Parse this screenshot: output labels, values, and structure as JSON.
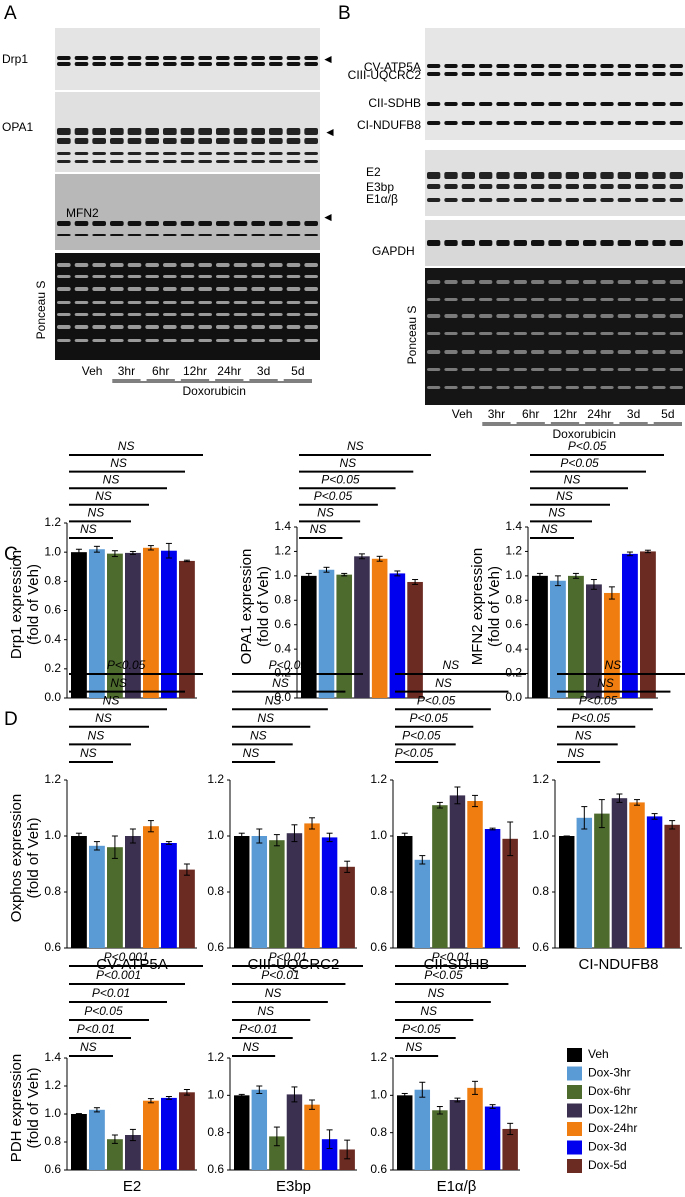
{
  "panel_labels": [
    "A",
    "B",
    "C",
    "D"
  ],
  "blot_a": {
    "labels": [
      "Drp1",
      "OPA1",
      "MFN2",
      "Ponceau S"
    ],
    "lanes": [
      "Veh",
      "3hr",
      "6hr",
      "12hr",
      "24hr",
      "3d",
      "5d"
    ],
    "treatment": "Doxorubicin"
  },
  "blot_b": {
    "labels": [
      "CV-ATP5A",
      "CIII-UQCRC2",
      "CII-SDHB",
      "CI-NDUFB8",
      "E2",
      "E3bp",
      "E1α/β",
      "GAPDH",
      "Ponceau S"
    ],
    "lanes": [
      "Veh",
      "3hr",
      "6hr",
      "12hr",
      "24hr",
      "3d",
      "5d"
    ],
    "treatment": "Doxorubicin"
  },
  "legend": {
    "names": [
      "Veh",
      "Dox-3hr",
      "Dox-6hr",
      "Dox-12hr",
      "Dox-24hr",
      "Dox-3d",
      "Dox-5d"
    ],
    "colors": [
      "#000000",
      "#5b9bd5",
      "#4e6b2e",
      "#3b3050",
      "#f07d10",
      "#0000ee",
      "#6b2a22"
    ]
  },
  "chart_data": [
    {
      "type": "bar",
      "ylabel": [
        "Drp1 expression",
        "(fold of Veh)"
      ],
      "values": [
        1.0,
        1.02,
        0.99,
        0.995,
        1.03,
        1.01,
        0.94
      ],
      "errors": [
        0.02,
        0.02,
        0.02,
        0.01,
        0.015,
        0.05,
        0.005
      ],
      "ylim": [
        0,
        1.2
      ],
      "yticks": [
        {
          "value": 0,
          "label": "0.0"
        },
        {
          "value": 0.2,
          "label": "0.2"
        },
        {
          "value": 0.4,
          "label": "0.4"
        },
        {
          "value": 0.6,
          "label": "0.6"
        },
        {
          "value": 0.8,
          "label": "0.8"
        },
        {
          "value": 1,
          "label": "1.0"
        },
        {
          "value": 1.2,
          "label": "1.2"
        }
      ],
      "brackets": [
        "NS",
        "NS",
        "NS",
        "NS",
        "NS",
        "NS"
      ]
    },
    {
      "type": "bar",
      "ylabel": [
        "OPA1 expression",
        "(fold of Veh)"
      ],
      "values": [
        1.0,
        1.05,
        1.01,
        1.16,
        1.14,
        1.02,
        0.95
      ],
      "errors": [
        0.02,
        0.02,
        0.01,
        0.02,
        0.02,
        0.02,
        0.02
      ],
      "ylim": [
        0,
        1.4
      ],
      "yticks": [
        {
          "value": 0,
          "label": "0.0"
        },
        {
          "value": 0.2,
          "label": "0.2"
        },
        {
          "value": 0.4,
          "label": "0.4"
        },
        {
          "value": 0.6,
          "label": "0.6"
        },
        {
          "value": 0.8,
          "label": "0.8"
        },
        {
          "value": 1,
          "label": "1.0"
        },
        {
          "value": 1.2,
          "label": "1.2"
        },
        {
          "value": 1.4,
          "label": "1.4"
        }
      ],
      "brackets": [
        "NS",
        "NS",
        "P<0.05",
        "P<0.05",
        "NS",
        "NS"
      ]
    },
    {
      "type": "bar",
      "ylabel": [
        "MFN2 expression",
        "(fold of Veh)"
      ],
      "values": [
        1.0,
        0.96,
        1.0,
        0.93,
        0.86,
        1.18,
        1.2
      ],
      "errors": [
        0.02,
        0.04,
        0.02,
        0.04,
        0.05,
        0.015,
        0.01
      ],
      "ylim": [
        0,
        1.4
      ],
      "yticks": [
        {
          "value": 0,
          "label": "0.0"
        },
        {
          "value": 0.2,
          "label": "0.2"
        },
        {
          "value": 0.4,
          "label": "0.4"
        },
        {
          "value": 0.6,
          "label": "0.6"
        },
        {
          "value": 0.8,
          "label": "0.8"
        },
        {
          "value": 1,
          "label": "1.0"
        },
        {
          "value": 1.2,
          "label": "1.2"
        },
        {
          "value": 1.4,
          "label": "1.4"
        }
      ],
      "brackets": [
        "NS",
        "NS",
        "NS",
        "NS",
        "P<0.05",
        "P<0.05"
      ]
    },
    {
      "type": "bar",
      "ylabel": [
        "Oxphos expression",
        "(fold of Veh)"
      ],
      "xlabel": "CV-ATP5A",
      "values": [
        1.0,
        0.965,
        0.96,
        1.0,
        1.035,
        0.975,
        0.88
      ],
      "errors": [
        0.01,
        0.015,
        0.04,
        0.025,
        0.02,
        0.005,
        0.02
      ],
      "ylim": [
        0.6,
        1.2
      ],
      "yticks": [
        {
          "value": 0.6,
          "label": "0.6"
        },
        {
          "value": 0.8,
          "label": "0.8"
        },
        {
          "value": 1,
          "label": "1.0"
        },
        {
          "value": 1.2,
          "label": "1.2"
        }
      ],
      "brackets": [
        "NS",
        "NS",
        "NS",
        "NS",
        "NS",
        "P<0.05"
      ]
    },
    {
      "type": "bar",
      "xlabel": "CIII-UQCRC2",
      "values": [
        1.0,
        1.0,
        0.985,
        1.01,
        1.045,
        0.995,
        0.89
      ],
      "errors": [
        0.01,
        0.025,
        0.02,
        0.03,
        0.02,
        0.015,
        0.02
      ],
      "ylim": [
        0.6,
        1.2
      ],
      "yticks": [
        {
          "value": 0.6,
          "label": "0.6"
        },
        {
          "value": 0.8,
          "label": "0.8"
        },
        {
          "value": 1,
          "label": "1.0"
        },
        {
          "value": 1.2,
          "label": "1.2"
        }
      ],
      "brackets": [
        "NS",
        "NS",
        "NS",
        "NS",
        "NS",
        "P<0.05"
      ]
    },
    {
      "type": "bar",
      "xlabel": "CII-SDHB",
      "values": [
        1.0,
        0.915,
        1.11,
        1.145,
        1.125,
        1.025,
        0.99
      ],
      "errors": [
        0.01,
        0.015,
        0.01,
        0.03,
        0.02,
        0.003,
        0.06
      ],
      "ylim": [
        0.6,
        1.2
      ],
      "yticks": [
        {
          "value": 0.6,
          "label": "0.6"
        },
        {
          "value": 0.8,
          "label": "0.8"
        },
        {
          "value": 1,
          "label": "1.0"
        },
        {
          "value": 1.2,
          "label": "1.2"
        }
      ],
      "brackets": [
        "P<0.05",
        "P<0.05",
        "P<0.05",
        "P<0.05",
        "NS",
        "NS"
      ]
    },
    {
      "type": "bar",
      "xlabel": "CI-NDUFB8",
      "values": [
        1.0,
        1.065,
        1.08,
        1.135,
        1.12,
        1.07,
        1.04
      ],
      "errors": [
        0,
        0.04,
        0.05,
        0.015,
        0.01,
        0.01,
        0.015
      ],
      "ylim": [
        0.6,
        1.2
      ],
      "yticks": [
        {
          "value": 0.6,
          "label": "0.6"
        },
        {
          "value": 0.8,
          "label": "0.8"
        },
        {
          "value": 1,
          "label": "1.0"
        },
        {
          "value": 1.2,
          "label": "1.2"
        }
      ],
      "brackets": [
        "NS",
        "NS",
        "P<0.05",
        "P<0.05",
        "NS",
        "NS"
      ]
    },
    {
      "type": "bar",
      "ylabel": [
        "PDH expression",
        "(fold of Veh)"
      ],
      "xlabel": "E2",
      "values": [
        1.0,
        1.03,
        0.82,
        0.85,
        1.095,
        1.115,
        1.155
      ],
      "errors": [
        0.003,
        0.015,
        0.03,
        0.04,
        0.015,
        0.01,
        0.02
      ],
      "ylim": [
        0.6,
        1.4
      ],
      "yticks": [
        {
          "value": 0.6,
          "label": "0.6"
        },
        {
          "value": 0.8,
          "label": "0.8"
        },
        {
          "value": 1,
          "label": "1.0"
        },
        {
          "value": 1.2,
          "label": "1.2"
        },
        {
          "value": 1.4,
          "label": "1.4"
        }
      ],
      "brackets": [
        "NS",
        "P<0.01",
        "P<0.05",
        "P<0.01",
        "P<0.001",
        "P<0.001"
      ]
    },
    {
      "type": "bar",
      "xlabel": "E3bp",
      "values": [
        1.0,
        1.03,
        0.78,
        1.005,
        0.95,
        0.765,
        0.71
      ],
      "errors": [
        0.005,
        0.02,
        0.05,
        0.04,
        0.025,
        0.05,
        0.05
      ],
      "ylim": [
        0.6,
        1.2
      ],
      "yticks": [
        {
          "value": 0.6,
          "label": "0.6"
        },
        {
          "value": 0.8,
          "label": "0.8"
        },
        {
          "value": 1,
          "label": "1.0"
        },
        {
          "value": 1.2,
          "label": "1.2"
        }
      ],
      "brackets": [
        "NS",
        "P<0.01",
        "NS",
        "NS",
        "P<0.01",
        "P<0.01"
      ]
    },
    {
      "type": "bar",
      "xlabel": "E1α/β",
      "values": [
        1.0,
        1.03,
        0.92,
        0.975,
        1.04,
        0.94,
        0.82
      ],
      "errors": [
        0.01,
        0.04,
        0.02,
        0.01,
        0.035,
        0.01,
        0.03
      ],
      "ylim": [
        0.6,
        1.2
      ],
      "yticks": [
        {
          "value": 0.6,
          "label": "0.6"
        },
        {
          "value": 0.8,
          "label": "0.8"
        },
        {
          "value": 1,
          "label": "1.0"
        },
        {
          "value": 1.2,
          "label": "1.2"
        }
      ],
      "brackets": [
        "NS",
        "P<0.05",
        "NS",
        "NS",
        "P<0.05",
        "P<0.01"
      ]
    }
  ]
}
